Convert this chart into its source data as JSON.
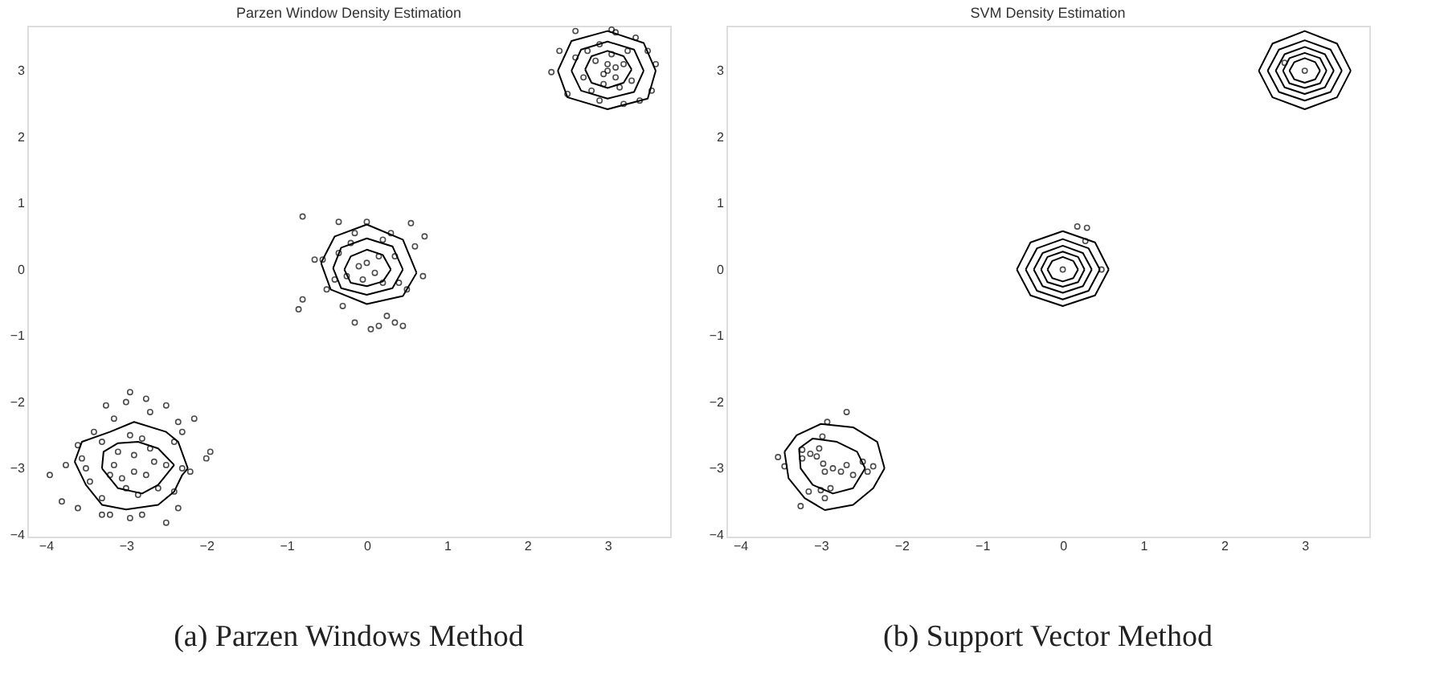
{
  "chart_data": [
    {
      "type": "scatter",
      "title": "Parzen Window Density Estimation",
      "annotations": [
        "(a) Parzen Windows Method"
      ],
      "xlim": [
        -4.23,
        3.78
      ],
      "ylim": [
        -4.03,
        3.68
      ],
      "xticks": [
        -4,
        -3,
        -2,
        -1,
        0,
        1,
        2,
        3
      ],
      "yticks": [
        -4,
        -3,
        -2,
        -1,
        0,
        1,
        2,
        3
      ],
      "grid": false,
      "legend": false,
      "series": [
        {
          "type": "scatter",
          "marker": "circle",
          "color": "#000000",
          "x": [
            -2.95,
            -3.25,
            -2.75,
            -2.5,
            -2.15,
            -3.0,
            -2.7,
            -3.15,
            -3.4,
            -2.35,
            -2.3,
            -2.4,
            -3.6,
            -3.75,
            -3.95,
            -3.8,
            -3.6,
            -3.3,
            -3.2,
            -2.95,
            -2.8,
            -2.5,
            -2.35,
            -2.4,
            -2.2,
            -1.95,
            -2.0,
            -2.3,
            -3.5,
            -3.45,
            -3.3,
            -3.0,
            -2.85,
            -2.9,
            -3.1,
            -2.8,
            -2.95,
            -3.15,
            -2.65,
            -2.75,
            -2.5,
            -3.2,
            -2.9,
            -2.6,
            -3.05,
            -2.7,
            -3.3,
            -3.55,
            -0.8,
            -0.35,
            0.0,
            0.55,
            0.72,
            0.6,
            -0.65,
            -0.55,
            0.7,
            0.5,
            -0.8,
            -0.85,
            -0.15,
            0.05,
            0.15,
            0.25,
            0.35,
            0.45,
            -0.3,
            -0.5,
            -0.2,
            0.2,
            0.35,
            -0.35,
            -0.1,
            0.1,
            0.0,
            -0.05,
            0.2,
            -0.25,
            0.15,
            0.4,
            -0.4,
            0.3,
            -0.15,
            2.3,
            2.4,
            2.6,
            3.05,
            3.1,
            3.35,
            3.5,
            3.6,
            3.55,
            3.4,
            3.2,
            2.9,
            2.5,
            2.6,
            2.7,
            2.85,
            3.0,
            3.1,
            3.2,
            2.95,
            3.3,
            2.75,
            3.05,
            3.25,
            2.9,
            3.15,
            2.8,
            3.0,
            2.95,
            3.1
          ],
          "values": [
            -1.85,
            -2.05,
            -1.95,
            -2.05,
            -2.25,
            -2.0,
            -2.15,
            -2.25,
            -2.45,
            -2.3,
            -2.45,
            -2.6,
            -2.65,
            -2.95,
            -3.1,
            -3.5,
            -3.6,
            -3.7,
            -3.7,
            -3.75,
            -3.7,
            -3.82,
            -3.6,
            -3.35,
            -3.05,
            -2.75,
            -2.85,
            -3.0,
            -3.0,
            -3.2,
            -3.45,
            -3.3,
            -3.4,
            -2.8,
            -2.75,
            -2.55,
            -2.5,
            -2.95,
            -2.9,
            -3.1,
            -2.95,
            -3.1,
            -3.05,
            -3.3,
            -3.15,
            -2.7,
            -2.6,
            -2.85,
            0.8,
            0.72,
            0.72,
            0.7,
            0.5,
            0.35,
            0.15,
            0.15,
            -0.1,
            -0.3,
            -0.45,
            -0.6,
            -0.8,
            -0.9,
            -0.85,
            -0.7,
            -0.8,
            -0.85,
            -0.55,
            -0.3,
            0.4,
            0.45,
            0.2,
            0.25,
            0.05,
            -0.05,
            0.1,
            -0.15,
            -0.2,
            -0.1,
            0.2,
            -0.2,
            -0.15,
            0.55,
            0.55,
            2.98,
            3.3,
            3.6,
            3.62,
            3.58,
            3.5,
            3.3,
            3.1,
            2.7,
            2.55,
            2.5,
            2.55,
            2.65,
            3.2,
            2.9,
            3.15,
            3.0,
            2.9,
            3.1,
            2.8,
            2.85,
            3.3,
            3.25,
            3.3,
            3.4,
            2.75,
            2.7,
            3.1,
            2.95,
            3.05
          ]
        },
        {
          "type": "line",
          "color": "#000000",
          "x": [
            2.38,
            2.55,
            3.0,
            3.45,
            3.6
          ],
          "values": [
            3.0,
            3.45,
            3.6,
            3.42,
            3.0
          ]
        },
        {
          "type": "line",
          "color": "#000000",
          "x": [
            2.38,
            2.5,
            3.0,
            3.5,
            3.6
          ],
          "values": [
            3.0,
            2.6,
            2.42,
            2.58,
            3.0
          ]
        },
        {
          "type": "line",
          "color": "#000000",
          "x": [
            2.55,
            2.67,
            3.0,
            3.33,
            3.45
          ],
          "values": [
            3.0,
            3.32,
            3.44,
            3.32,
            3.0
          ]
        },
        {
          "type": "line",
          "color": "#000000",
          "x": [
            2.55,
            2.67,
            3.0,
            3.33,
            3.45
          ],
          "values": [
            3.0,
            2.7,
            2.58,
            2.68,
            3.0
          ]
        },
        {
          "type": "line",
          "color": "#000000",
          "x": [
            2.72,
            2.8,
            3.0,
            3.2,
            3.3
          ],
          "values": [
            3.02,
            3.22,
            3.3,
            3.22,
            3.02
          ]
        },
        {
          "type": "line",
          "color": "#000000",
          "x": [
            2.72,
            2.8,
            3.0,
            3.2,
            3.3
          ],
          "values": [
            3.02,
            2.82,
            2.74,
            2.82,
            3.02
          ]
        },
        {
          "type": "line",
          "color": "#000000",
          "x": [
            -0.57,
            -0.4,
            0.0,
            0.45,
            0.62
          ],
          "values": [
            0.1,
            0.5,
            0.68,
            0.45,
            -0.05
          ]
        },
        {
          "type": "line",
          "color": "#000000",
          "x": [
            -0.57,
            -0.45,
            0.0,
            0.45,
            0.62
          ],
          "values": [
            0.1,
            -0.3,
            -0.52,
            -0.4,
            -0.05
          ]
        },
        {
          "type": "line",
          "color": "#000000",
          "x": [
            -0.42,
            -0.32,
            0.0,
            0.32,
            0.45
          ],
          "values": [
            0.02,
            0.33,
            0.47,
            0.35,
            0.0
          ]
        },
        {
          "type": "line",
          "color": "#000000",
          "x": [
            -0.42,
            -0.32,
            0.0,
            0.32,
            0.45
          ],
          "values": [
            0.02,
            -0.28,
            -0.38,
            -0.28,
            0.0
          ]
        },
        {
          "type": "line",
          "color": "#000000",
          "x": [
            -0.28,
            -0.2,
            0.0,
            0.2,
            0.3
          ],
          "values": [
            0.0,
            0.2,
            0.3,
            0.22,
            0.0
          ]
        },
        {
          "type": "line",
          "color": "#000000",
          "x": [
            -0.28,
            -0.2,
            0.0,
            0.2,
            0.3
          ],
          "values": [
            0.0,
            -0.2,
            -0.25,
            -0.18,
            0.0
          ]
        },
        {
          "type": "line",
          "color": "#000000",
          "x": [
            -3.64,
            -3.55,
            -3.2,
            -2.9,
            -2.5,
            -2.35,
            -2.23
          ],
          "values": [
            -2.9,
            -2.6,
            -2.45,
            -2.3,
            -2.45,
            -2.6,
            -3.0
          ]
        },
        {
          "type": "line",
          "color": "#000000",
          "x": [
            -3.64,
            -3.5,
            -3.3,
            -3.0,
            -2.6,
            -2.4,
            -2.3,
            -2.23
          ],
          "values": [
            -2.9,
            -3.25,
            -3.55,
            -3.62,
            -3.55,
            -3.35,
            -3.1,
            -3.0
          ]
        },
        {
          "type": "line",
          "color": "#000000",
          "x": [
            -3.3,
            -3.28,
            -3.1,
            -2.85,
            -2.6,
            -2.4
          ],
          "values": [
            -3.0,
            -2.75,
            -2.62,
            -2.6,
            -2.7,
            -2.95
          ]
        },
        {
          "type": "line",
          "color": "#000000",
          "x": [
            -3.3,
            -3.1,
            -2.8,
            -2.6,
            -2.4
          ],
          "values": [
            -3.0,
            -3.3,
            -3.38,
            -3.25,
            -2.95
          ]
        }
      ]
    },
    {
      "type": "scatter",
      "title": "SVM Density Estimation",
      "annotations": [
        "(b) Support Vector Method"
      ],
      "xlim": [
        -4.17,
        3.8
      ],
      "ylim": [
        -4.03,
        3.68
      ],
      "xticks": [
        -4,
        -3,
        -2,
        -1,
        0,
        1,
        2,
        3
      ],
      "yticks": [
        -4,
        -3,
        -2,
        -1,
        0,
        1,
        2,
        3
      ],
      "grid": false,
      "legend": false,
      "series": [
        {
          "type": "scatter",
          "marker": "circle",
          "color": "#000000",
          "x": [
            -3.53,
            -3.45,
            -3.23,
            -3.23,
            -3.13,
            -3.02,
            -3.05,
            -2.97,
            -2.95,
            -2.85,
            -2.75,
            -2.68,
            -2.6,
            -2.48,
            -2.42,
            -2.35,
            -2.98,
            -2.92,
            -2.68,
            -3.15,
            -3.0,
            -2.88,
            -2.95,
            -3.25,
            0.18,
            0.3,
            0.28,
            0.48,
            0.0,
            2.75,
            3.0
          ],
          "values": [
            -2.83,
            -2.97,
            -2.85,
            -2.72,
            -2.78,
            -2.7,
            -2.82,
            -2.93,
            -3.05,
            -3.0,
            -3.05,
            -2.95,
            -3.1,
            -2.9,
            -3.05,
            -2.97,
            -2.52,
            -2.3,
            -2.15,
            -3.35,
            -3.33,
            -3.3,
            -3.45,
            -3.57,
            0.65,
            0.63,
            0.43,
            0.0,
            0.0,
            3.12,
            3.0
          ]
        },
        {
          "type": "line",
          "color": "#000000",
          "x": [
            -0.57,
            -0.4,
            0.0,
            0.4,
            0.57
          ],
          "values": [
            0.0,
            0.41,
            0.58,
            0.41,
            0.0
          ]
        },
        {
          "type": "line",
          "color": "#000000",
          "x": [
            -0.57,
            -0.4,
            0.0,
            0.4,
            0.57
          ],
          "values": [
            0.0,
            -0.39,
            -0.55,
            -0.39,
            0.0
          ]
        },
        {
          "type": "line",
          "color": "#000000",
          "x": [
            -0.46,
            -0.32,
            0.0,
            0.32,
            0.46
          ],
          "values": [
            0.0,
            0.32,
            0.46,
            0.32,
            0.0
          ]
        },
        {
          "type": "line",
          "color": "#000000",
          "x": [
            -0.46,
            -0.32,
            0.0,
            0.32,
            0.46
          ],
          "values": [
            0.0,
            -0.32,
            -0.45,
            -0.32,
            0.0
          ]
        },
        {
          "type": "line",
          "color": "#000000",
          "x": [
            -0.36,
            -0.25,
            0.0,
            0.25,
            0.36
          ],
          "values": [
            0.0,
            0.25,
            0.36,
            0.25,
            0.0
          ]
        },
        {
          "type": "line",
          "color": "#000000",
          "x": [
            -0.36,
            -0.25,
            0.0,
            0.25,
            0.36
          ],
          "values": [
            0.0,
            -0.25,
            -0.35,
            -0.25,
            0.0
          ]
        },
        {
          "type": "line",
          "color": "#000000",
          "x": [
            -0.27,
            -0.19,
            0.0,
            0.19,
            0.27
          ],
          "values": [
            0.0,
            0.19,
            0.27,
            0.19,
            0.0
          ]
        },
        {
          "type": "line",
          "color": "#000000",
          "x": [
            -0.27,
            -0.19,
            0.0,
            0.19,
            0.27
          ],
          "values": [
            0.0,
            -0.19,
            -0.26,
            -0.19,
            0.0
          ]
        },
        {
          "type": "line",
          "color": "#000000",
          "x": [
            -0.19,
            -0.13,
            0.0,
            0.13,
            0.19
          ],
          "values": [
            0.0,
            0.13,
            0.19,
            0.13,
            0.0
          ]
        },
        {
          "type": "line",
          "color": "#000000",
          "x": [
            -0.19,
            -0.13,
            0.0,
            0.13,
            0.19
          ],
          "values": [
            0.0,
            -0.13,
            -0.18,
            -0.13,
            0.0
          ]
        },
        {
          "type": "line",
          "color": "#000000",
          "x": [
            2.43,
            2.6,
            3.0,
            3.4,
            3.57
          ],
          "values": [
            3.0,
            3.41,
            3.6,
            3.41,
            3.0
          ]
        },
        {
          "type": "line",
          "color": "#000000",
          "x": [
            2.43,
            2.6,
            3.0,
            3.4,
            3.57
          ],
          "values": [
            3.0,
            2.6,
            2.42,
            2.6,
            3.0
          ]
        },
        {
          "type": "line",
          "color": "#000000",
          "x": [
            2.54,
            2.68,
            3.0,
            3.32,
            3.46
          ],
          "values": [
            3.0,
            3.32,
            3.46,
            3.32,
            3.0
          ]
        },
        {
          "type": "line",
          "color": "#000000",
          "x": [
            2.54,
            2.68,
            3.0,
            3.32,
            3.46
          ],
          "values": [
            3.0,
            2.68,
            2.55,
            2.68,
            3.0
          ]
        },
        {
          "type": "line",
          "color": "#000000",
          "x": [
            2.64,
            2.75,
            3.0,
            3.25,
            3.36
          ],
          "values": [
            3.0,
            3.25,
            3.36,
            3.25,
            3.0
          ]
        },
        {
          "type": "line",
          "color": "#000000",
          "x": [
            2.64,
            2.75,
            3.0,
            3.25,
            3.36
          ],
          "values": [
            3.0,
            2.75,
            2.65,
            2.75,
            3.0
          ]
        },
        {
          "type": "line",
          "color": "#000000",
          "x": [
            2.73,
            2.81,
            3.0,
            3.19,
            3.27
          ],
          "values": [
            3.0,
            3.19,
            3.27,
            3.19,
            3.0
          ]
        },
        {
          "type": "line",
          "color": "#000000",
          "x": [
            2.73,
            2.81,
            3.0,
            3.19,
            3.27
          ],
          "values": [
            3.0,
            2.81,
            2.74,
            2.81,
            3.0
          ]
        },
        {
          "type": "line",
          "color": "#000000",
          "x": [
            2.81,
            2.87,
            3.0,
            3.13,
            3.19
          ],
          "values": [
            3.0,
            3.13,
            3.19,
            3.13,
            3.0
          ]
        },
        {
          "type": "line",
          "color": "#000000",
          "x": [
            2.81,
            2.87,
            3.0,
            3.13,
            3.19
          ],
          "values": [
            3.0,
            2.87,
            2.82,
            2.87,
            3.0
          ]
        },
        {
          "type": "line",
          "color": "#000000",
          "x": [
            -3.45,
            -3.3,
            -3.0,
            -2.6,
            -2.3,
            -2.21
          ],
          "values": [
            -2.75,
            -2.5,
            -2.33,
            -2.38,
            -2.6,
            -3.0
          ]
        },
        {
          "type": "line",
          "color": "#000000",
          "x": [
            -3.45,
            -3.4,
            -3.2,
            -2.95,
            -2.6,
            -2.35,
            -2.21
          ],
          "values": [
            -2.75,
            -3.15,
            -3.45,
            -3.63,
            -3.55,
            -3.3,
            -3.0
          ]
        },
        {
          "type": "line",
          "color": "#000000",
          "x": [
            -3.27,
            -3.1,
            -2.8,
            -2.55,
            -2.45
          ],
          "values": [
            -2.7,
            -2.55,
            -2.6,
            -2.75,
            -3.0
          ]
        },
        {
          "type": "line",
          "color": "#000000",
          "x": [
            -3.27,
            -3.25,
            -3.1,
            -2.85,
            -2.6,
            -2.45
          ],
          "values": [
            -2.7,
            -3.0,
            -3.25,
            -3.38,
            -3.3,
            -3.0
          ]
        }
      ]
    }
  ]
}
